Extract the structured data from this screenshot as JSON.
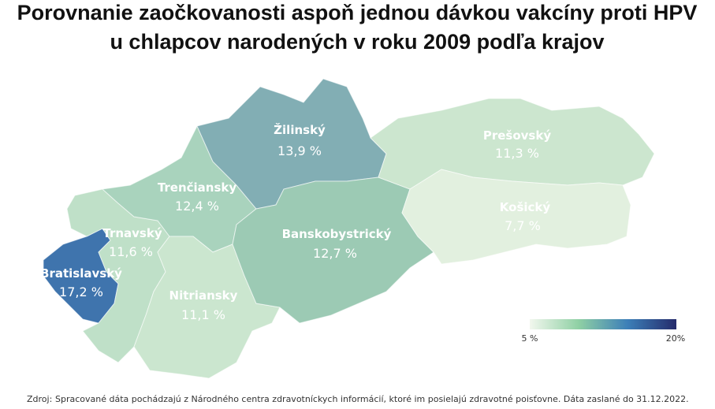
{
  "title": [
    "Porovnanie zaočkovanosti aspoň jednou dávkou vakcíny proti HPV",
    "u chlapcov narodených v roku 2009 podľa krajov"
  ],
  "regions": [
    {
      "name": "Bratislavský",
      "value": 17.2,
      "value_label": "17,2 %",
      "color": "#3f74ad"
    },
    {
      "name": "Trnavský",
      "value": 11.6,
      "value_label": "11,6 %",
      "color": "#bfe0c8"
    },
    {
      "name": "Trenčiansky",
      "value": 12.4,
      "value_label": "12,4 %",
      "color": "#a9d3bd"
    },
    {
      "name": "Nitriansky",
      "value": 11.1,
      "value_label": "11,1 %",
      "color": "#cbe6cf"
    },
    {
      "name": "Žilinský",
      "value": 13.9,
      "value_label": "13,9 %",
      "color": "#82aeb4"
    },
    {
      "name": "Banskobystrický",
      "value": 12.7,
      "value_label": "12,7 %",
      "color": "#9ccab4"
    },
    {
      "name": "Prešovský",
      "value": 11.3,
      "value_label": "11,3 %",
      "color": "#cce6cf"
    },
    {
      "name": "Košický",
      "value": 7.7,
      "value_label": "7,7 %",
      "color": "#e2f0df"
    }
  ],
  "legend": {
    "min": {
      "value": 5,
      "label": "5 %"
    },
    "max": {
      "value": 20,
      "label": "20%"
    },
    "colors": [
      "#f2f7ee",
      "#8fd0a4",
      "#3c7fb8",
      "#252b6b"
    ]
  },
  "source": {
    "label": "Zdroj:",
    "text": "Spracované dáta pochádzajú z Národného centra zdravotníckych informácií, ktoré im posielajú zdravotné poisťovne. Dáta zaslané do 31.12.2022."
  }
}
